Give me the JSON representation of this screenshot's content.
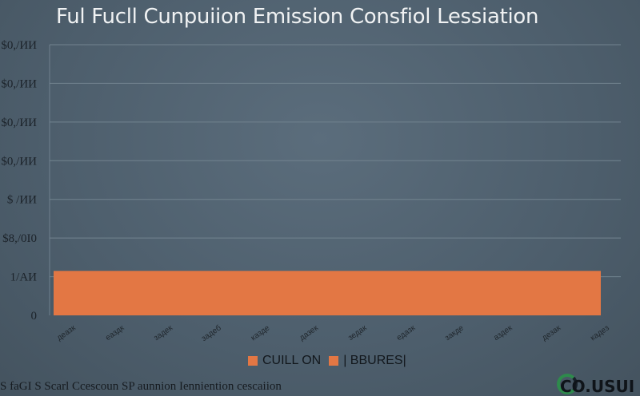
{
  "chart_data": {
    "type": "bar",
    "title": "Ful Fucll Cunpuiion Emission Consfiol Lessiation",
    "y_tick_labels": [
      "0",
      "1/АИ",
      "$8,/0I0",
      "$ /ИИ",
      "$0,/ИИ",
      "$0,/ИИ",
      "$0,/ИИ",
      "$0,/ИИ"
    ],
    "ylim": [
      0,
      7
    ],
    "x_tick_labels": [
      "деазк",
      "еаздк",
      "задек",
      "задеб",
      "казде",
      "дазек",
      "зедак",
      "едазк",
      "закде",
      "аздек",
      "дезак",
      "кадез"
    ],
    "bars": [
      {
        "series": "CUILL ON",
        "value": 1.15,
        "color": "#e37744"
      }
    ],
    "grid": true,
    "legend_position": "bottom-center",
    "legend": [
      {
        "name": "CUILL ON",
        "color": "#e37744"
      },
      {
        "name": "| BBURES|",
        "color": "#e37744"
      }
    ]
  },
  "footer": {
    "note": "S faGI S Scarl Ccescoun SP aunnion Ienniention cescaiion"
  },
  "logo": {
    "text": "CO.USUI",
    "ring_color": "#2e8a4c"
  }
}
